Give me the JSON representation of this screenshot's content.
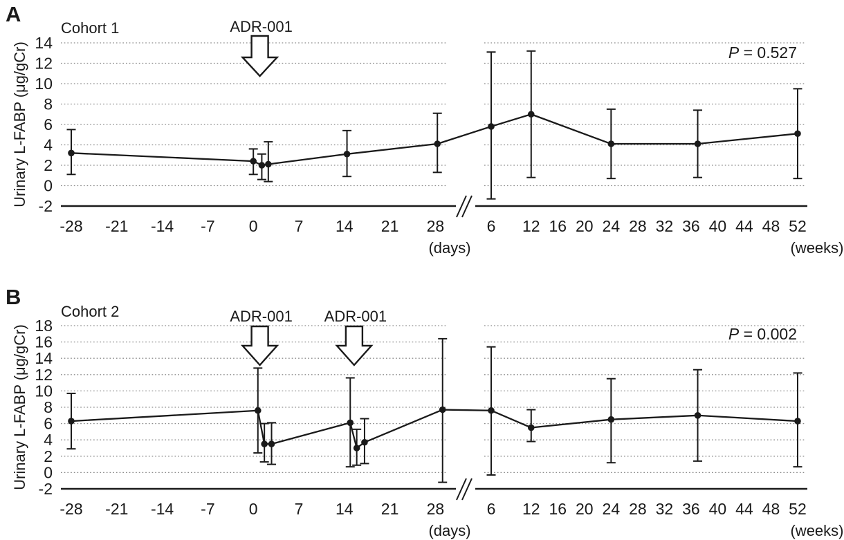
{
  "figure": {
    "background": "#ffffff",
    "ink": "#1a1a1a",
    "grid_color": "#8c8c8c"
  },
  "chart_data": [
    {
      "type": "line",
      "panel_label": "A",
      "title": "Cohort 1",
      "ylabel": "Urinary L-FABP (μg/gCr)",
      "p_value": {
        "symbol": "P",
        "rest": " = 0.527"
      },
      "ylim": [
        -2,
        14
      ],
      "yticks": [
        14,
        12,
        10,
        8,
        6,
        4,
        2,
        0,
        -2
      ],
      "x_day_ticks": [
        -28,
        -21,
        -14,
        -7,
        0,
        7,
        14,
        21,
        28
      ],
      "x_week_ticks": [
        6,
        12,
        16,
        20,
        24,
        28,
        32,
        36,
        40,
        44,
        48,
        52
      ],
      "x_day_unit": "(days)",
      "x_week_unit": "(weeks)",
      "grid": true,
      "axis_break": true,
      "legend": "none",
      "annotations": [
        {
          "label": "ADR-001",
          "axis": "days",
          "x": 1.0
        }
      ],
      "series": [
        {
          "name": "Cohort 1 mean with error bars",
          "points": [
            {
              "axis": "days",
              "x": -28,
              "y": 3.2,
              "lo": 1.1,
              "hi": 5.5
            },
            {
              "axis": "days",
              "x": 0,
              "y": 2.4,
              "lo": 1.1,
              "hi": 3.6
            },
            {
              "axis": "days",
              "x": 1.3,
              "y": 2.0,
              "lo": 0.6,
              "hi": 3.1
            },
            {
              "axis": "days",
              "x": 2.3,
              "y": 2.1,
              "lo": 0.4,
              "hi": 4.3
            },
            {
              "axis": "days",
              "x": 14.4,
              "y": 3.1,
              "lo": 0.9,
              "hi": 5.4
            },
            {
              "axis": "days",
              "x": 28.3,
              "y": 4.1,
              "lo": 1.3,
              "hi": 7.1
            },
            {
              "axis": "weeks",
              "x": 6,
              "y": 5.8,
              "lo": -1.3,
              "hi": 13.1
            },
            {
              "axis": "weeks",
              "x": 12,
              "y": 7.0,
              "lo": 0.8,
              "hi": 13.2
            },
            {
              "axis": "weeks",
              "x": 24,
              "y": 4.1,
              "lo": 0.7,
              "hi": 7.5
            },
            {
              "axis": "weeks",
              "x": 37,
              "y": 4.1,
              "lo": 0.8,
              "hi": 7.4
            },
            {
              "axis": "weeks",
              "x": 52,
              "y": 5.1,
              "lo": 0.7,
              "hi": 9.5
            }
          ]
        }
      ]
    },
    {
      "type": "line",
      "panel_label": "B",
      "title": "Cohort 2",
      "ylabel": "Urinary L-FABP (μg/gCr)",
      "p_value": {
        "symbol": "P",
        "rest": " = 0.002"
      },
      "ylim": [
        -2,
        18
      ],
      "yticks": [
        18,
        16,
        14,
        12,
        10,
        8,
        6,
        4,
        2,
        0,
        -2
      ],
      "x_day_ticks": [
        -28,
        -21,
        -14,
        -7,
        0,
        7,
        14,
        21,
        28
      ],
      "x_week_ticks": [
        6,
        12,
        16,
        20,
        24,
        28,
        32,
        36,
        40,
        44,
        48,
        52
      ],
      "x_day_unit": "(days)",
      "x_week_unit": "(weeks)",
      "grid": true,
      "axis_break": true,
      "legend": "none",
      "annotations": [
        {
          "label": "ADR-001",
          "axis": "days",
          "x": 1.0
        },
        {
          "label": "ADR-001",
          "axis": "days",
          "x": 15.5
        }
      ],
      "series": [
        {
          "name": "Cohort 2 mean with error bars",
          "points": [
            {
              "axis": "days",
              "x": -28,
              "y": 6.3,
              "lo": 2.9,
              "hi": 9.7
            },
            {
              "axis": "days",
              "x": 0.7,
              "y": 7.6,
              "lo": 2.4,
              "hi": 12.8
            },
            {
              "axis": "days",
              "x": 1.7,
              "y": 3.5,
              "lo": 1.3,
              "hi": 6.0
            },
            {
              "axis": "days",
              "x": 2.8,
              "y": 3.5,
              "lo": 1.0,
              "hi": 6.1
            },
            {
              "axis": "days",
              "x": 14.9,
              "y": 6.1,
              "lo": 0.7,
              "hi": 11.6
            },
            {
              "axis": "days",
              "x": 15.9,
              "y": 3.0,
              "lo": 0.9,
              "hi": 5.3
            },
            {
              "axis": "days",
              "x": 17.1,
              "y": 3.7,
              "lo": 1.1,
              "hi": 6.6
            },
            {
              "axis": "days",
              "x": 29.1,
              "y": 7.7,
              "lo": -1.2,
              "hi": 16.4
            },
            {
              "axis": "weeks",
              "x": 6,
              "y": 7.6,
              "lo": -0.3,
              "hi": 15.4
            },
            {
              "axis": "weeks",
              "x": 12,
              "y": 5.5,
              "lo": 3.8,
              "hi": 7.7
            },
            {
              "axis": "weeks",
              "x": 24,
              "y": 6.5,
              "lo": 1.2,
              "hi": 11.5
            },
            {
              "axis": "weeks",
              "x": 37,
              "y": 7.0,
              "lo": 1.4,
              "hi": 12.6
            },
            {
              "axis": "weeks",
              "x": 52,
              "y": 6.3,
              "lo": 0.7,
              "hi": 12.2
            }
          ]
        }
      ]
    }
  ]
}
